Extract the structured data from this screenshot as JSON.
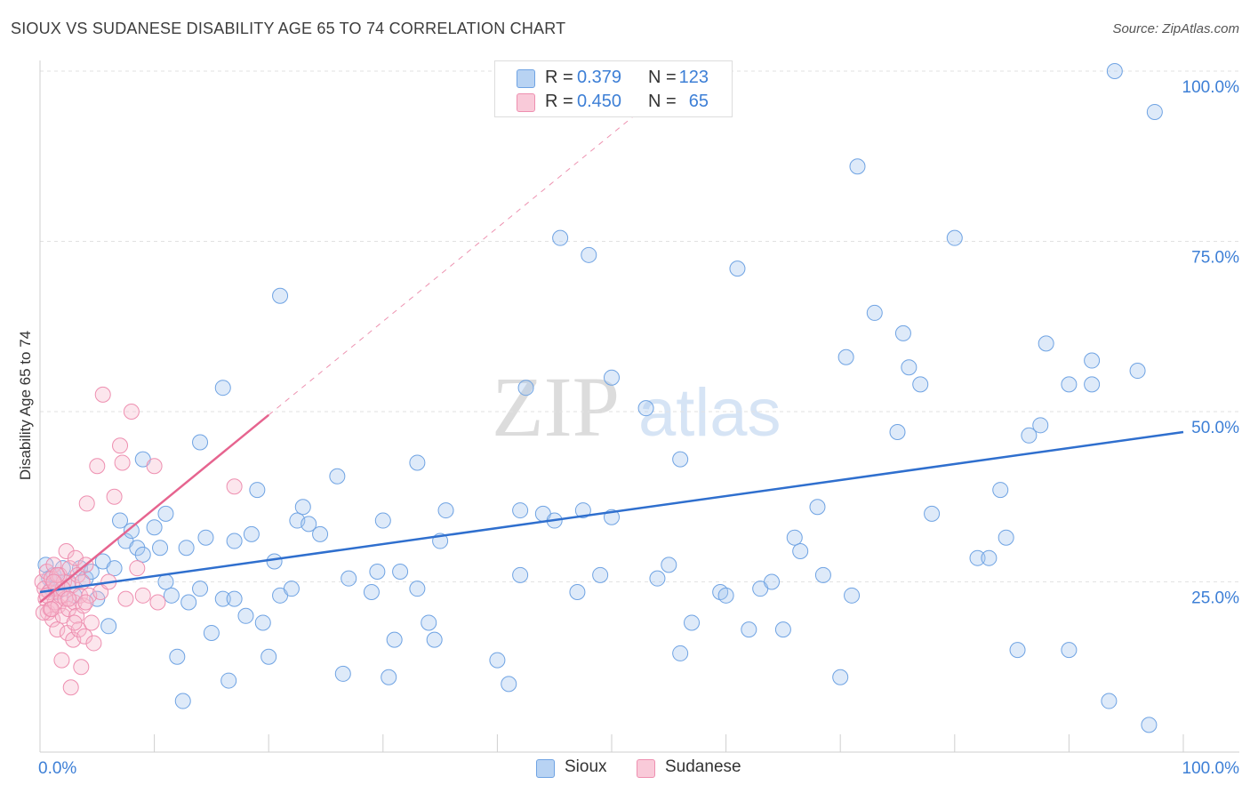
{
  "title": "SIOUX VS SUDANESE DISABILITY AGE 65 TO 74 CORRELATION CHART",
  "source": "Source: ZipAtlas.com",
  "watermark": {
    "zip": "ZIP",
    "atlas": "atlas"
  },
  "legend": {
    "rows": [
      {
        "r_label": "R =",
        "r_value": "0.379",
        "n_label": "N =",
        "n_value": "123",
        "color": "#a8c8f0",
        "edge": "#6fa3e3"
      },
      {
        "r_label": "R =",
        "r_value": "0.450",
        "n_label": "N =",
        "n_value": "65",
        "color": "#f7bcd0",
        "edge": "#ee8fb0"
      }
    ]
  },
  "bottom_legend": {
    "sioux": "Sioux",
    "sudanese": "Sudanese"
  },
  "chart_data": {
    "type": "scatter",
    "title": "SIOUX VS SUDANESE DISABILITY AGE 65 TO 74 CORRELATION CHART",
    "xlabel": "",
    "ylabel": "Disability Age 65 to 74",
    "xlim": [
      0,
      100
    ],
    "ylim": [
      0,
      102
    ],
    "x_tick_labels": [
      "0.0%",
      "100.0%"
    ],
    "y_ticks": [
      25,
      50,
      75,
      100
    ],
    "y_tick_labels": [
      "25.0%",
      "50.0%",
      "75.0%",
      "100.0%"
    ],
    "grid": true,
    "legend_position": "top-center",
    "colors": {
      "sioux": "#6fa3e3",
      "sudanese": "#ee8fb0",
      "sioux_line": "#2f6fce",
      "sudanese_line": "#e6648f"
    },
    "series": [
      {
        "name": "Sioux",
        "points": [
          [
            0.5,
            27.5
          ],
          [
            0.8,
            25.5
          ],
          [
            1,
            24
          ],
          [
            1.2,
            26
          ],
          [
            1.5,
            23.5
          ],
          [
            2,
            27
          ],
          [
            2.5,
            25
          ],
          [
            3,
            23
          ],
          [
            3.5,
            27
          ],
          [
            4,
            25.5
          ],
          [
            4.5,
            26.5
          ],
          [
            5,
            22.5
          ],
          [
            5.5,
            28
          ],
          [
            6,
            18.5
          ],
          [
            6.5,
            27
          ],
          [
            7,
            34
          ],
          [
            7.5,
            31
          ],
          [
            8,
            32.5
          ],
          [
            8.5,
            30
          ],
          [
            9,
            29
          ],
          [
            9,
            43
          ],
          [
            10,
            33
          ],
          [
            10.5,
            30
          ],
          [
            11,
            35
          ],
          [
            11,
            25
          ],
          [
            11.5,
            23
          ],
          [
            12,
            14
          ],
          [
            12.5,
            7.5
          ],
          [
            12.8,
            30
          ],
          [
            13,
            22
          ],
          [
            14,
            24
          ],
          [
            14,
            45.5
          ],
          [
            14.5,
            31.5
          ],
          [
            15,
            17.5
          ],
          [
            16,
            22.5
          ],
          [
            16,
            53.5
          ],
          [
            16.5,
            10.5
          ],
          [
            17,
            31
          ],
          [
            17,
            22.5
          ],
          [
            18,
            20
          ],
          [
            18.5,
            32
          ],
          [
            19,
            38.5
          ],
          [
            19.5,
            19
          ],
          [
            20,
            14
          ],
          [
            20.5,
            28
          ],
          [
            21,
            23
          ],
          [
            21,
            67
          ],
          [
            22,
            24
          ],
          [
            22.5,
            34
          ],
          [
            23,
            36
          ],
          [
            23.5,
            33.5
          ],
          [
            24.5,
            32
          ],
          [
            26,
            40.5
          ],
          [
            26.5,
            11.5
          ],
          [
            27,
            25.5
          ],
          [
            29,
            23.5
          ],
          [
            29.5,
            26.5
          ],
          [
            30,
            34
          ],
          [
            30.5,
            11
          ],
          [
            31,
            16.5
          ],
          [
            31.5,
            26.5
          ],
          [
            33,
            24
          ],
          [
            33,
            42.5
          ],
          [
            34,
            19
          ],
          [
            34.5,
            16.5
          ],
          [
            35,
            31
          ],
          [
            35.5,
            35.5
          ],
          [
            40,
            13.5
          ],
          [
            41,
            10
          ],
          [
            42,
            26
          ],
          [
            42,
            35.5
          ],
          [
            42.5,
            53.5
          ],
          [
            44,
            35
          ],
          [
            45,
            34
          ],
          [
            45.5,
            75.5
          ],
          [
            47,
            23.5
          ],
          [
            47.5,
            35.5
          ],
          [
            48,
            73
          ],
          [
            49,
            26
          ],
          [
            50,
            34.5
          ],
          [
            50,
            55
          ],
          [
            53,
            50.5
          ],
          [
            54,
            25.5
          ],
          [
            55,
            27.5
          ],
          [
            56,
            14.5
          ],
          [
            56,
            43
          ],
          [
            57,
            19
          ],
          [
            59.5,
            23.5
          ],
          [
            60,
            23
          ],
          [
            61,
            71
          ],
          [
            62,
            18
          ],
          [
            63,
            24
          ],
          [
            64,
            25
          ],
          [
            65,
            18
          ],
          [
            66,
            31.5
          ],
          [
            66.5,
            29.5
          ],
          [
            68,
            36
          ],
          [
            68.5,
            26
          ],
          [
            70,
            11
          ],
          [
            70.5,
            58
          ],
          [
            71,
            23
          ],
          [
            71.5,
            86
          ],
          [
            73,
            64.5
          ],
          [
            75,
            47
          ],
          [
            75.5,
            61.5
          ],
          [
            76,
            56.5
          ],
          [
            77,
            54
          ],
          [
            78,
            35
          ],
          [
            80,
            75.5
          ],
          [
            82,
            28.5
          ],
          [
            83,
            28.5
          ],
          [
            84,
            38.5
          ],
          [
            84.5,
            31.5
          ],
          [
            85.5,
            15
          ],
          [
            86.5,
            46.5
          ],
          [
            87.5,
            48
          ],
          [
            88,
            60
          ],
          [
            90,
            15
          ],
          [
            90,
            54
          ],
          [
            92,
            54
          ],
          [
            92,
            57.5
          ],
          [
            93.5,
            7.5
          ],
          [
            94,
            100
          ],
          [
            96,
            56
          ],
          [
            97,
            4
          ],
          [
            97.5,
            94
          ]
        ],
        "trend": {
          "x0": 0,
          "y0": 23.5,
          "x1": 100,
          "y1": 47
        }
      },
      {
        "name": "Sudanese",
        "points": [
          [
            0.2,
            25
          ],
          [
            0.4,
            24
          ],
          [
            0.5,
            22.5
          ],
          [
            0.6,
            26.5
          ],
          [
            0.7,
            20.5
          ],
          [
            0.8,
            23.5
          ],
          [
            0.9,
            21
          ],
          [
            1,
            25.5
          ],
          [
            1.1,
            19.5
          ],
          [
            1.2,
            27.5
          ],
          [
            1.3,
            22
          ],
          [
            1.4,
            24
          ],
          [
            1.5,
            18
          ],
          [
            1.6,
            21.5
          ],
          [
            1.7,
            26
          ],
          [
            1.8,
            23
          ],
          [
            1.9,
            13.5
          ],
          [
            2,
            20
          ],
          [
            2.1,
            25
          ],
          [
            2.2,
            22.5
          ],
          [
            2.3,
            29.5
          ],
          [
            2.4,
            17.5
          ],
          [
            2.5,
            21
          ],
          [
            2.6,
            27
          ],
          [
            2.7,
            9.5
          ],
          [
            2.8,
            24.5
          ],
          [
            2.9,
            16.5
          ],
          [
            3,
            22
          ],
          [
            3.1,
            28.5
          ],
          [
            3.2,
            20
          ],
          [
            3.3,
            26
          ],
          [
            3.4,
            18
          ],
          [
            3.5,
            23
          ],
          [
            3.6,
            12.5
          ],
          [
            3.7,
            25
          ],
          [
            3.8,
            21.5
          ],
          [
            3.9,
            17
          ],
          [
            4,
            27.5
          ],
          [
            4.1,
            36.5
          ],
          [
            4.3,
            23
          ],
          [
            4.5,
            19
          ],
          [
            4.7,
            16
          ],
          [
            5,
            42
          ],
          [
            5.3,
            23.5
          ],
          [
            5.5,
            52.5
          ],
          [
            6,
            25
          ],
          [
            6.5,
            37.5
          ],
          [
            7,
            45
          ],
          [
            7.2,
            42.5
          ],
          [
            7.5,
            22.5
          ],
          [
            8,
            50
          ],
          [
            8.5,
            27
          ],
          [
            9,
            23
          ],
          [
            10,
            42
          ],
          [
            10.3,
            22
          ],
          [
            0.3,
            20.5
          ],
          [
            0.6,
            23
          ],
          [
            1,
            21
          ],
          [
            1.5,
            26
          ],
          [
            2,
            24
          ],
          [
            2.5,
            22.5
          ],
          [
            3,
            19
          ],
          [
            4,
            22
          ],
          [
            17,
            39
          ],
          [
            1.2,
            25
          ]
        ],
        "trend_solid": {
          "x0": 0,
          "y0": 22,
          "x1": 20,
          "y1": 49.5
        },
        "trend_dashed": {
          "x0": 20,
          "y0": 49.5,
          "x1": 52,
          "y1": 93.5
        }
      }
    ]
  }
}
